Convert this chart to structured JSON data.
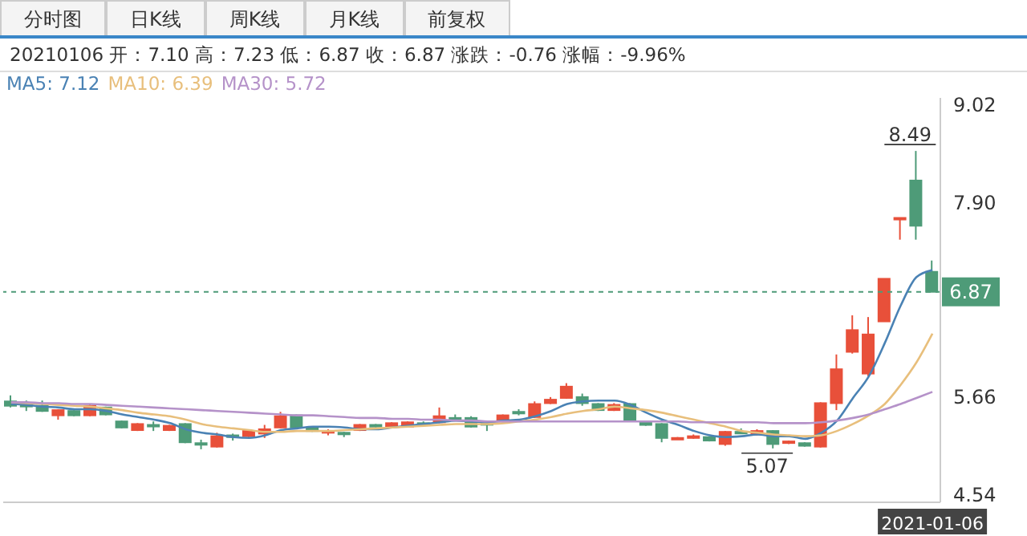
{
  "chart_data": {
    "type": "candlestick",
    "subtitle": "20210106 开：7.10 高：7.23 低：6.87 收：6.87 涨跌：-0.76 涨幅：-9.96%",
    "annotations": [
      "分时图",
      "日K线",
      "周K线",
      "月K线",
      "前复权",
      {
        "text": "8.49",
        "y": 8.49
      },
      {
        "text": "5.07",
        "y": 5.07
      }
    ],
    "categories": [
      null,
      null,
      null,
      null,
      null,
      null,
      null,
      null,
      null,
      null,
      null,
      null,
      null,
      null,
      null,
      null,
      null,
      null,
      null,
      null,
      null,
      null,
      null,
      null,
      null,
      null,
      null,
      null,
      null,
      null,
      null,
      null,
      null,
      null,
      null,
      null,
      null,
      null,
      null,
      null,
      null,
      null,
      null,
      null,
      null,
      null,
      null,
      null,
      null,
      null,
      null,
      null,
      null,
      null,
      null,
      null,
      null,
      null,
      "2021-01-06"
    ],
    "ohlc": [
      [
        5.61,
        5.68,
        5.54,
        5.56
      ],
      [
        5.57,
        5.62,
        5.5,
        5.56
      ],
      [
        5.56,
        5.62,
        5.49,
        5.5
      ],
      [
        5.45,
        5.52,
        5.4,
        5.51
      ],
      [
        5.5,
        5.51,
        5.44,
        5.45
      ],
      [
        5.45,
        5.58,
        5.44,
        5.56
      ],
      [
        5.54,
        5.55,
        5.45,
        5.46
      ],
      [
        5.38,
        5.39,
        5.3,
        5.31
      ],
      [
        5.28,
        5.36,
        5.27,
        5.35
      ],
      [
        5.34,
        5.38,
        5.27,
        5.33
      ],
      [
        5.28,
        5.34,
        5.27,
        5.33
      ],
      [
        5.35,
        5.36,
        5.13,
        5.14
      ],
      [
        5.13,
        5.17,
        5.06,
        5.12
      ],
      [
        5.09,
        5.25,
        5.08,
        5.21
      ],
      [
        5.22,
        5.24,
        5.16,
        5.2
      ],
      [
        5.21,
        5.28,
        5.2,
        5.27
      ],
      [
        5.24,
        5.34,
        5.19,
        5.29
      ],
      [
        5.31,
        5.49,
        5.3,
        5.44
      ],
      [
        5.45,
        5.46,
        5.3,
        5.31
      ],
      [
        5.31,
        5.32,
        5.26,
        5.27
      ],
      [
        5.25,
        5.29,
        5.22,
        5.27
      ],
      [
        5.25,
        5.26,
        5.2,
        5.24
      ],
      [
        5.28,
        5.35,
        5.27,
        5.34
      ],
      [
        5.34,
        5.35,
        5.31,
        5.32
      ],
      [
        5.32,
        5.37,
        5.31,
        5.36
      ],
      [
        5.32,
        5.38,
        5.31,
        5.37
      ],
      [
        5.36,
        5.38,
        5.33,
        5.35
      ],
      [
        5.37,
        5.54,
        5.36,
        5.44
      ],
      [
        5.42,
        5.46,
        5.39,
        5.41
      ],
      [
        5.42,
        5.44,
        5.31,
        5.32
      ],
      [
        5.36,
        5.38,
        5.27,
        5.35
      ],
      [
        5.38,
        5.46,
        5.37,
        5.45
      ],
      [
        5.49,
        5.52,
        5.45,
        5.48
      ],
      [
        5.43,
        5.61,
        5.42,
        5.58
      ],
      [
        5.59,
        5.66,
        5.58,
        5.63
      ],
      [
        5.65,
        5.82,
        5.64,
        5.78
      ],
      [
        5.66,
        5.7,
        5.56,
        5.59
      ],
      [
        5.58,
        5.59,
        5.5,
        5.51
      ],
      [
        5.51,
        5.59,
        5.5,
        5.57
      ],
      [
        5.58,
        5.59,
        5.38,
        5.39
      ],
      [
        5.37,
        5.38,
        5.33,
        5.34
      ],
      [
        5.35,
        5.36,
        5.14,
        5.19
      ],
      [
        5.18,
        5.2,
        5.17,
        5.19
      ],
      [
        5.19,
        5.23,
        5.18,
        5.21
      ],
      [
        5.2,
        5.21,
        5.15,
        5.16
      ],
      [
        5.12,
        5.27,
        5.1,
        5.26
      ],
      [
        5.26,
        5.3,
        5.24,
        5.25
      ],
      [
        5.23,
        5.29,
        5.22,
        5.27
      ],
      [
        5.27,
        5.28,
        5.07,
        5.12
      ],
      [
        5.14,
        5.16,
        5.12,
        5.15
      ],
      [
        5.13,
        5.14,
        5.09,
        5.1
      ],
      [
        5.09,
        5.6,
        5.08,
        5.59
      ],
      [
        5.59,
        6.15,
        5.51,
        5.98
      ],
      [
        6.18,
        6.6,
        6.16,
        6.43
      ],
      [
        5.93,
        6.58,
        5.9,
        6.38
      ],
      [
        6.53,
        7.02,
        6.53,
        7.02
      ],
      [
        7.71,
        7.72,
        7.47,
        7.72
      ],
      [
        8.15,
        8.49,
        7.47,
        7.63
      ],
      [
        7.1,
        7.23,
        6.87,
        6.87
      ]
    ],
    "colors": [
      "#4e9b78",
      "#4e9b78",
      "#4e9b78",
      "#e8503a",
      "#4e9b78",
      "#e8503a",
      "#4e9b78",
      "#4e9b78",
      "#e8503a",
      "#4e9b78",
      "#e8503a",
      "#4e9b78",
      "#4e9b78",
      "#e8503a",
      "#4e9b78",
      "#e8503a",
      "#e8503a",
      "#e8503a",
      "#4e9b78",
      "#4e9b78",
      "#e8503a",
      "#4e9b78",
      "#e8503a",
      "#4e9b78",
      "#e8503a",
      "#e8503a",
      "#4e9b78",
      "#e8503a",
      "#4e9b78",
      "#4e9b78",
      "#4e9b78",
      "#e8503a",
      "#4e9b78",
      "#e8503a",
      "#e8503a",
      "#e8503a",
      "#4e9b78",
      "#4e9b78",
      "#e8503a",
      "#4e9b78",
      "#4e9b78",
      "#4e9b78",
      "#e8503a",
      "#e8503a",
      "#4e9b78",
      "#e8503a",
      "#4e9b78",
      "#e8503a",
      "#4e9b78",
      "#e8503a",
      "#4e9b78",
      "#e8503a",
      "#e8503a",
      "#e8503a",
      "#e8503a",
      "#e8503a",
      "#e8503a",
      "#4e9b78",
      "#4e9b78"
    ],
    "series": [
      {
        "type": "line",
        "name": "MA5: 7.12",
        "color": "#4a82b4",
        "values": [
          5.58,
          5.57,
          5.55,
          5.54,
          5.52,
          5.52,
          5.5,
          5.46,
          5.43,
          5.4,
          5.36,
          5.29,
          5.25,
          5.23,
          5.2,
          5.19,
          5.22,
          5.28,
          5.3,
          5.32,
          5.32,
          5.31,
          5.29,
          5.29,
          5.31,
          5.33,
          5.35,
          5.37,
          5.39,
          5.38,
          5.37,
          5.39,
          5.4,
          5.44,
          5.5,
          5.58,
          5.61,
          5.62,
          5.62,
          5.57,
          5.48,
          5.4,
          5.34,
          5.27,
          5.22,
          5.2,
          5.21,
          5.23,
          5.21,
          5.21,
          5.18,
          5.25,
          5.39,
          5.65,
          5.9,
          6.28,
          6.71,
          7.04,
          7.12
        ]
      },
      {
        "type": "line",
        "name": "MA10: 6.39",
        "color": "#e8bf7c",
        "values": [
          5.6,
          5.59,
          5.58,
          5.57,
          5.56,
          5.55,
          5.53,
          5.51,
          5.48,
          5.46,
          5.44,
          5.4,
          5.35,
          5.32,
          5.3,
          5.28,
          5.26,
          5.26,
          5.27,
          5.27,
          5.27,
          5.28,
          5.29,
          5.3,
          5.31,
          5.32,
          5.33,
          5.34,
          5.35,
          5.35,
          5.35,
          5.36,
          5.38,
          5.4,
          5.43,
          5.47,
          5.5,
          5.52,
          5.55,
          5.53,
          5.51,
          5.48,
          5.44,
          5.4,
          5.36,
          5.32,
          5.27,
          5.25,
          5.23,
          5.22,
          5.21,
          5.22,
          5.27,
          5.35,
          5.45,
          5.58,
          5.8,
          6.06,
          6.39
        ]
      },
      {
        "type": "line",
        "name": "MA30: 5.72",
        "color": "#b592c9",
        "values": [
          5.6,
          5.6,
          5.59,
          5.59,
          5.58,
          5.58,
          5.57,
          5.56,
          5.55,
          5.54,
          5.53,
          5.52,
          5.51,
          5.5,
          5.49,
          5.48,
          5.47,
          5.46,
          5.45,
          5.45,
          5.44,
          5.43,
          5.42,
          5.42,
          5.41,
          5.41,
          5.4,
          5.4,
          5.39,
          5.39,
          5.38,
          5.38,
          5.38,
          5.38,
          5.38,
          5.38,
          5.38,
          5.38,
          5.38,
          5.38,
          5.38,
          5.38,
          5.38,
          5.37,
          5.37,
          5.37,
          5.37,
          5.37,
          5.36,
          5.36,
          5.36,
          5.37,
          5.39,
          5.42,
          5.46,
          5.52,
          5.58,
          5.65,
          5.72
        ]
      }
    ],
    "ylim": [
      4.45,
      9.1
    ],
    "yticks": [
      4.54,
      5.66,
      {
        "value": 7.9,
        "label": "7.90"
      },
      9.02
    ],
    "ref_lines": [
      {
        "axis": "y",
        "value": 6.87,
        "label": "6.87",
        "color": "#4e9b78",
        "line_style": "dashed"
      }
    ],
    "legend": "top left"
  }
}
